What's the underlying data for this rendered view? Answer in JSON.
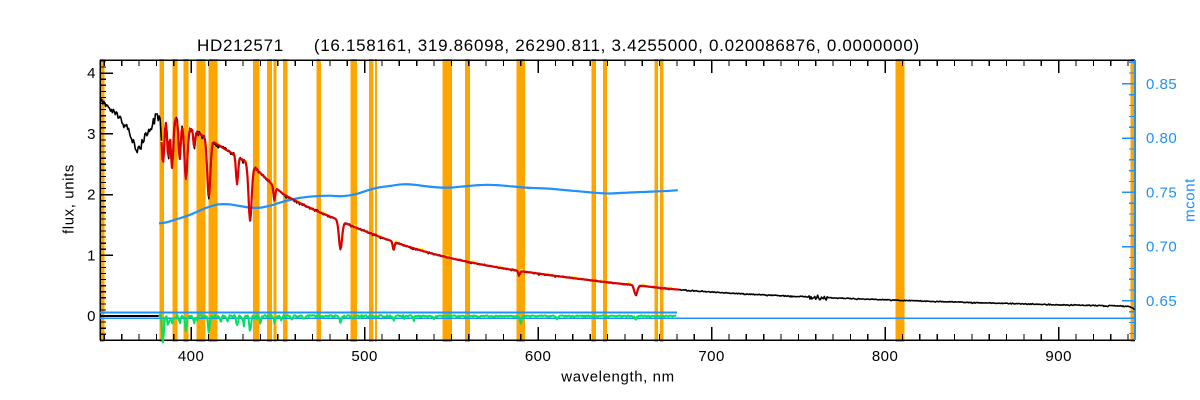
{
  "title": {
    "star": "HD212571",
    "params": "(16.158161, 319.86098, 26290.811, 3.4255000, 0.020086876, 0.0000000)"
  },
  "axes": {
    "x": {
      "label": "wavelength, nm",
      "min": 347.5,
      "max": 944.0,
      "major_ticks": [
        400,
        500,
        600,
        700,
        800,
        900
      ],
      "major_tick_labels": [
        "400",
        "500",
        "600",
        "700",
        "800",
        "900"
      ],
      "minor_tick_step": 10
    },
    "y_left": {
      "label": "flux, units",
      "min": -0.395,
      "max": 4.217,
      "major_ticks": [
        0,
        1,
        2,
        3,
        4
      ],
      "major_tick_labels": [
        "0",
        "1",
        "2",
        "3",
        "4"
      ],
      "minor_tick_step": 0.1
    },
    "y_right": {
      "label": "mcont",
      "min": 0.614,
      "max": 0.872,
      "major_ticks": [
        0.65,
        0.7,
        0.75,
        0.8,
        0.85
      ],
      "major_tick_labels": [
        "0.65",
        "0.70",
        "0.75",
        "0.80",
        "0.85"
      ],
      "minor_tick_step": 0.01
    }
  },
  "colors": {
    "frame": "#000000",
    "right_axis": "#1E90FF",
    "masked_band": "#FFA500",
    "observed": "#000000",
    "model_fit": "#DE0000",
    "model_underlay": "#FFFF00",
    "mcont_curve": "#1E90FF",
    "residual": "#00E165",
    "reference_line": "#1E90FF"
  },
  "chart_data": {
    "type": "line",
    "title": "HD212571  (16.158161, 319.86098, 26290.811, 3.4255000, 0.020086876, 0.0000000)",
    "xlabel": "wavelength, nm",
    "ylabel_left": "flux, units",
    "ylabel_right": "mcont",
    "x_range_nm": [
      347.5,
      944.0
    ],
    "y_left_range": [
      -0.395,
      4.217
    ],
    "y_right_range": [
      0.614,
      0.872
    ],
    "series": [
      {
        "name": "observed-spectrum",
        "axis": "left",
        "color": "#000000",
        "points_x": [
          347.5,
          352,
          357,
          362,
          366,
          369,
          372,
          376,
          380,
          383,
          386,
          390,
          394,
          398,
          402,
          406,
          410,
          415,
          420,
          425,
          430,
          436,
          442,
          448,
          453,
          460,
          467,
          474,
          480,
          486,
          492,
          500,
          509,
          520,
          530,
          540,
          550,
          560,
          570,
          580,
          590,
          600,
          610,
          620,
          630,
          640,
          650,
          656,
          665,
          675,
          685,
          700,
          715,
          730,
          745,
          760,
          775,
          790,
          805,
          820,
          835,
          850,
          865,
          880,
          895,
          910,
          925,
          940,
          942,
          944
        ],
        "points_y": [
          3.55,
          3.44,
          3.33,
          3.16,
          2.93,
          2.73,
          2.85,
          3.1,
          3.32,
          3.38,
          3.33,
          3.27,
          3.2,
          3.12,
          3.05,
          2.98,
          2.92,
          2.83,
          2.74,
          2.66,
          2.57,
          2.46,
          2.3,
          2.13,
          2.01,
          1.9,
          1.8,
          1.71,
          1.64,
          1.57,
          1.49,
          1.4,
          1.3,
          1.19,
          1.1,
          1.02,
          0.95,
          0.89,
          0.835,
          0.785,
          0.74,
          0.7,
          0.66,
          0.625,
          0.59,
          0.555,
          0.525,
          0.51,
          0.48,
          0.45,
          0.425,
          0.395,
          0.37,
          0.348,
          0.328,
          0.31,
          0.293,
          0.277,
          0.262,
          0.248,
          0.235,
          0.223,
          0.211,
          0.2,
          0.19,
          0.18,
          0.17,
          0.16,
          0.145,
          0.1
        ],
        "noise_regions": [
          [
            347.5,
            362,
            0.045
          ],
          [
            362,
            371,
            0.06
          ],
          [
            371,
            376,
            0.07
          ],
          [
            376,
            381,
            0.095
          ],
          [
            381,
            392,
            0.1
          ],
          [
            392,
            400,
            0.05
          ],
          [
            400,
            412,
            0.04
          ],
          [
            412,
            430,
            0.03
          ],
          [
            430,
            450,
            0.025
          ],
          [
            450,
            480,
            0.019
          ],
          [
            480,
            520,
            0.015
          ],
          [
            520,
            600,
            0.012
          ],
          [
            600,
            700,
            0.01
          ],
          [
            700,
            756,
            0.007
          ],
          [
            756,
            767,
            0.04
          ],
          [
            767,
            880,
            0.006
          ],
          [
            880,
            944,
            0.008
          ]
        ]
      },
      {
        "name": "model-fit",
        "axis": "left",
        "color": "#DE0000",
        "x_start": 383,
        "x_end": 681
      },
      {
        "name": "model-fit-underlay",
        "axis": "left",
        "color": "#FFFF00",
        "x_start": 383,
        "x_end": 681
      },
      {
        "name": "continuum-mcont",
        "axis": "right",
        "color": "#1E90FF",
        "points_x": [
          381.5,
          386,
          392,
          398,
          404,
          410,
          416,
          422,
          428,
          434,
          440,
          446,
          452,
          458,
          465,
          472,
          480,
          487,
          494,
          501,
          508,
          515,
          522,
          529,
          536,
          543,
          550,
          557,
          564,
          571,
          578,
          585,
          592,
          599,
          606,
          613,
          620,
          627,
          634,
          641,
          648,
          655,
          662,
          669,
          676,
          680.5
        ],
        "points_y": [
          0.7215,
          0.7225,
          0.7255,
          0.7285,
          0.7325,
          0.7365,
          0.739,
          0.739,
          0.7375,
          0.736,
          0.736,
          0.738,
          0.741,
          0.7435,
          0.7455,
          0.7465,
          0.747,
          0.7465,
          0.748,
          0.7515,
          0.7545,
          0.756,
          0.7575,
          0.757,
          0.7555,
          0.7545,
          0.7545,
          0.7555,
          0.7565,
          0.757,
          0.7565,
          0.7555,
          0.7545,
          0.754,
          0.7535,
          0.7525,
          0.7515,
          0.7505,
          0.7495,
          0.749,
          0.7495,
          0.75,
          0.7505,
          0.751,
          0.7515,
          0.752
        ]
      },
      {
        "name": "residual",
        "axis": "left",
        "color": "#00E165",
        "x_start": 381.5,
        "x_end": 680,
        "base_noise": [
          [
            381.5,
            392,
            0.03
          ],
          [
            392,
            450,
            0.02
          ],
          [
            450,
            530,
            0.013
          ],
          [
            530,
            680,
            0.009
          ]
        ],
        "spikes": [
          [
            383.8,
            -0.42
          ],
          [
            386.8,
            -0.15
          ],
          [
            389.0,
            -0.14
          ],
          [
            393.4,
            -0.11
          ],
          [
            397.0,
            -0.26
          ],
          [
            401.8,
            -0.11
          ],
          [
            410.2,
            -0.27
          ],
          [
            417.0,
            -0.08
          ],
          [
            421.0,
            -0.1
          ],
          [
            426.5,
            -0.17
          ],
          [
            430.0,
            -0.09
          ],
          [
            434.0,
            -0.28
          ],
          [
            440.0,
            -0.12
          ],
          [
            448.0,
            -0.1
          ],
          [
            452.0,
            -0.07
          ],
          [
            458.0,
            -0.06
          ],
          [
            465.0,
            -0.05
          ],
          [
            486.1,
            -0.13
          ],
          [
            493.0,
            -0.06
          ],
          [
            516.7,
            -0.07
          ],
          [
            540.0,
            -0.05
          ],
          [
            590.0,
            -0.12
          ],
          [
            611.0,
            -0.05
          ],
          [
            656.3,
            -0.06
          ]
        ]
      }
    ],
    "absorption_lines": [
      [
        383.8,
        2.52,
        0.8
      ],
      [
        386.8,
        2.62,
        0.6
      ],
      [
        389.0,
        2.44,
        0.7
      ],
      [
        393.4,
        2.58,
        0.6
      ],
      [
        397.0,
        2.27,
        0.9
      ],
      [
        401.8,
        2.78,
        0.5
      ],
      [
        410.2,
        1.96,
        0.9
      ],
      [
        426.5,
        2.17,
        0.6
      ],
      [
        434.0,
        1.57,
        0.9
      ],
      [
        448.0,
        1.9,
        0.5
      ],
      [
        486.1,
        1.1,
        0.9
      ],
      [
        516.7,
        1.09,
        0.5
      ],
      [
        589.0,
        0.67,
        0.5
      ],
      [
        656.3,
        0.35,
        0.9
      ]
    ],
    "masked_bands_nm": [
      [
        347.6,
        350.2
      ],
      [
        381.7,
        384.4
      ],
      [
        389.4,
        392.1
      ],
      [
        395.6,
        398.4
      ],
      [
        403.0,
        408.3
      ],
      [
        410.0,
        415.2
      ],
      [
        435.8,
        439.5
      ],
      [
        443.8,
        446.5
      ],
      [
        447.5,
        449.3
      ],
      [
        453.0,
        455.5
      ],
      [
        472.3,
        474.8
      ],
      [
        491.8,
        495.5
      ],
      [
        502.6,
        505.0
      ],
      [
        505.9,
        507.3
      ],
      [
        545.0,
        550.5
      ],
      [
        557.8,
        560.8
      ],
      [
        587.6,
        592.5
      ],
      [
        630.9,
        633.4
      ],
      [
        637.3,
        639.8
      ],
      [
        667.0,
        669.0
      ],
      [
        670.1,
        672.2
      ],
      [
        806.0,
        811.0
      ],
      [
        941.5,
        944.0
      ]
    ],
    "reference_lines": [
      {
        "value": 0.0,
        "x_start": 347.5,
        "x_end": 381.5,
        "color": "#000000"
      },
      {
        "value": 0.058,
        "x_start": 347.5,
        "x_end": 680.0,
        "color": "#1E90FF"
      },
      {
        "value": -0.04,
        "x_start": 347.5,
        "x_end": 944.0,
        "color": "#1E90FF"
      }
    ]
  }
}
